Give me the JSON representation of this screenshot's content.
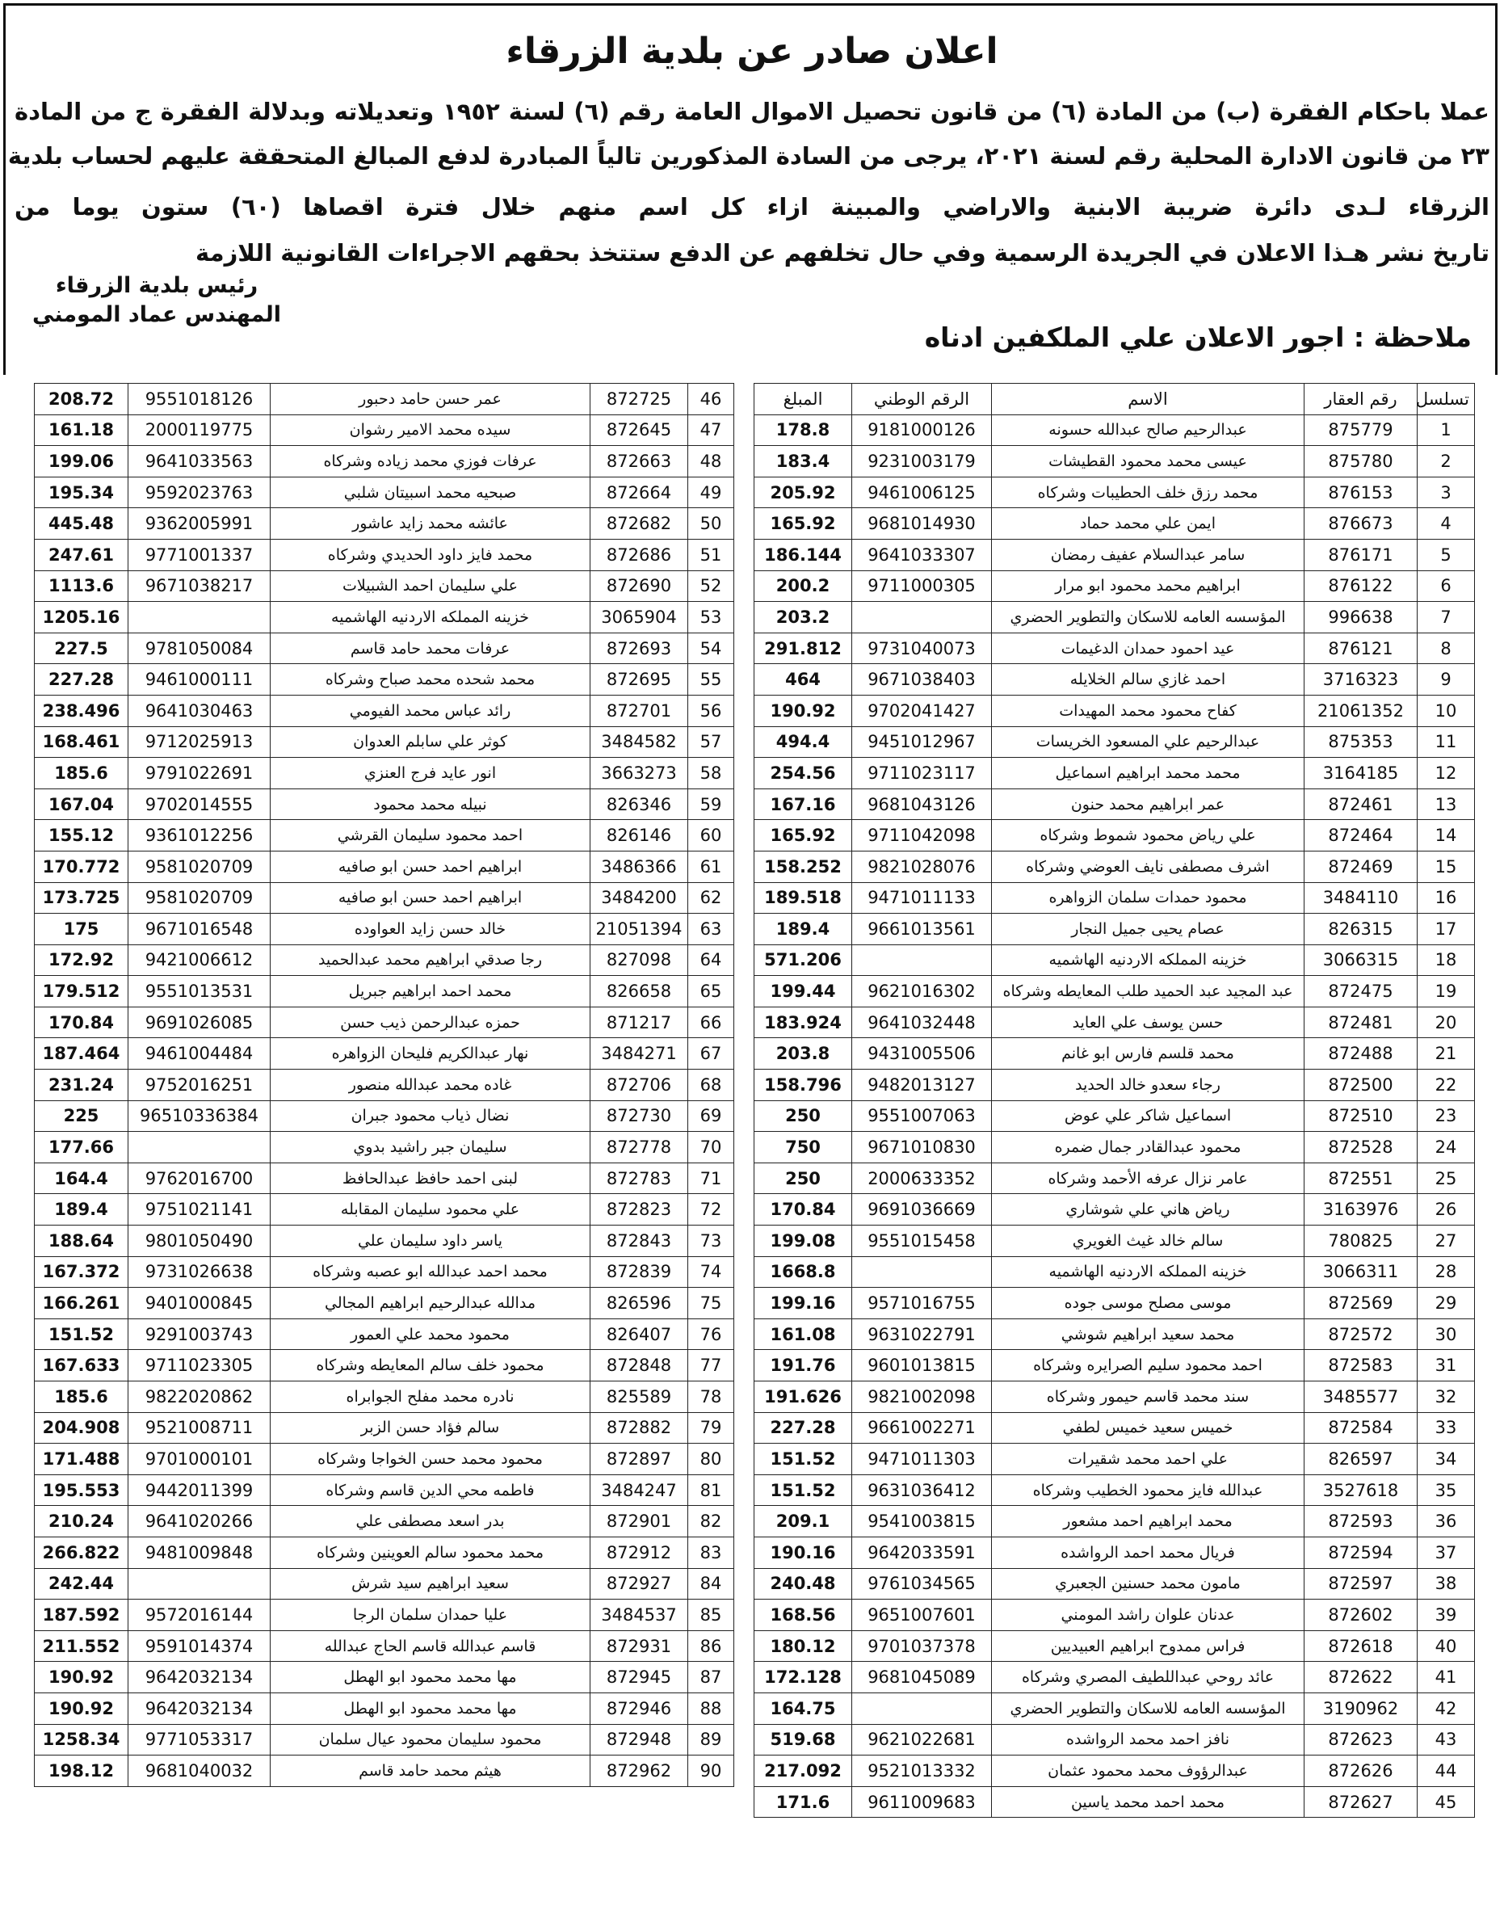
{
  "header": {
    "title": "اعلان صادر عن بلدية الزرقاء",
    "paragraph": [
      "عملا باحكام الفقرة (ب) من المادة (٦) من قانون تحصيل الاموال العامة رقم (٦) لسنة ١٩٥٢ وتعديلاته وبدلالة الفقرة ج من المادة",
      "٢٣ من قانون الادارة المحلية رقم لسنة ٢٠٢١، يرجى من السادة المذكورين تالياً المبادرة لدفع المبالغ المتحققة عليهم لحساب بلدية",
      "الزرقاء لـدى دائرة ضريبة الابنية والاراضي والمبينة ازاء كل اسم منهم خلال فترة اقصاها (٦٠) ستون يوما من",
      "تاريخ نشر هـذا الاعلان في الجريدة الرسمية وفي حال تخلفهم عن الدفع ستتخذ بحقهم الاجراءات القانونية اللازمة"
    ],
    "signature": [
      "رئيس بلدية الزرقاء",
      "المهندس عماد المومني"
    ],
    "note": "ملاحظة : اجور الاعلان علي الملكفين ادناه"
  },
  "tables": [
    {
      "columns": [
        "تسلسل",
        "رقم العقار",
        "الاسم",
        "الرقم الوطني",
        "المبلغ"
      ],
      "rows": [
        [
          "1",
          "875779",
          "عبدالرحيم صالح عبدالله حسونه",
          "9181000126",
          "178.8"
        ],
        [
          "2",
          "875780",
          "عيسى محمد محمود القطيشات",
          "9231003179",
          "183.4"
        ],
        [
          "3",
          "876153",
          "محمد رزق خلف الحطيبات وشركاه",
          "9461006125",
          "205.92"
        ],
        [
          "4",
          "876673",
          "ايمن علي محمد حماد",
          "9681014930",
          "165.92"
        ],
        [
          "5",
          "876171",
          "سامر عبدالسلام عفيف رمضان",
          "9641033307",
          "186.144"
        ],
        [
          "6",
          "876122",
          "ابراهيم محمد محمود ابو مرار",
          "9711000305",
          "200.2"
        ],
        [
          "7",
          "996638",
          "المؤسسه العامه للاسكان والتطوير الحضري",
          null,
          "203.2"
        ],
        [
          "8",
          "876121",
          "عيد احمود حمدان الدغيمات",
          "9731040073",
          "291.812"
        ],
        [
          "9",
          "3716323",
          "احمد غازي سالم الخلايله",
          "9671038403",
          "464"
        ],
        [
          "10",
          "21061352",
          "كفاح محمود محمد المهيدات",
          "9702041427",
          "190.92"
        ],
        [
          "11",
          "875353",
          "عبدالرحيم علي المسعود الخريسات",
          "9451012967",
          "494.4"
        ],
        [
          "12",
          "3164185",
          "محمد محمد ابراهيم اسماعيل",
          "9711023117",
          "254.56"
        ],
        [
          "13",
          "872461",
          "عمر ابراهيم محمد حنون",
          "9681043126",
          "167.16"
        ],
        [
          "14",
          "872464",
          "علي رياض محمود شموط وشركاه",
          "9711042098",
          "165.92"
        ],
        [
          "15",
          "872469",
          "اشرف مصطفى نايف العوضي وشركاه",
          "9821028076",
          "158.252"
        ],
        [
          "16",
          "3484110",
          "محمود حمدات سلمان الزواهره",
          "9471011133",
          "189.518"
        ],
        [
          "17",
          "826315",
          "عصام يحيى جميل النجار",
          "9661013561",
          "189.4"
        ],
        [
          "18",
          "3066315",
          "خزينه المملكه الاردنيه الهاشميه",
          null,
          "571.206"
        ],
        [
          "19",
          "872475",
          "عبد المجيد عبد الحميد طلب المعايطه وشركاه",
          "9621016302",
          "199.44"
        ],
        [
          "20",
          "872481",
          "حسن يوسف علي العايد",
          "9641032448",
          "183.924"
        ],
        [
          "21",
          "872488",
          "محمد قلسم فارس ابو غانم",
          "9431005506",
          "203.8"
        ],
        [
          "22",
          "872500",
          "رجاء سعدو خالد الحديد",
          "9482013127",
          "158.796"
        ],
        [
          "23",
          "872510",
          "اسماعيل شاكر علي عوض",
          "9551007063",
          "250"
        ],
        [
          "24",
          "872528",
          "محمود عبدالقادر جمال ضمره",
          "9671010830",
          "750"
        ],
        [
          "25",
          "872551",
          "عامر نزال عرفه الأحمد وشركاه",
          "2000633352",
          "250"
        ],
        [
          "26",
          "3163976",
          "رياض هاني علي شوشاري",
          "9691036669",
          "170.84"
        ],
        [
          "27",
          "780825",
          "سالم خالد غيث الغويري",
          "9551015458",
          "199.08"
        ],
        [
          "28",
          "3066311",
          "خزينه المملكه الاردنيه الهاشميه",
          null,
          "1668.8"
        ],
        [
          "29",
          "872569",
          "موسى مصلح موسى جوده",
          "9571016755",
          "199.16"
        ],
        [
          "30",
          "872572",
          "محمد سعيد ابراهيم شوشي",
          "9631022791",
          "161.08"
        ],
        [
          "31",
          "872583",
          "احمد محمود سليم الصرايره وشركاه",
          "9601013815",
          "191.76"
        ],
        [
          "32",
          "3485577",
          "سند محمد قاسم حيمور وشركاه",
          "9821002098",
          "191.626"
        ],
        [
          "33",
          "872584",
          "خميس سعيد خميس لطفي",
          "9661002271",
          "227.28"
        ],
        [
          "34",
          "826597",
          "علي احمد محمد شقيرات",
          "9471011303",
          "151.52"
        ],
        [
          "35",
          "3527618",
          "عبدالله فايز محمود الخطيب وشركاه",
          "9631036412",
          "151.52"
        ],
        [
          "36",
          "872593",
          "محمد ابراهيم احمد مشعور",
          "9541003815",
          "209.1"
        ],
        [
          "37",
          "872594",
          "فريال محمد احمد الرواشده",
          "9642033591",
          "190.16"
        ],
        [
          "38",
          "872597",
          "مامون محمد حسنين الجعبري",
          "9761034565",
          "240.48"
        ],
        [
          "39",
          "872602",
          "عدنان علوان راشد المومني",
          "9651007601",
          "168.56"
        ],
        [
          "40",
          "872618",
          "فراس ممدوح ابراهيم العبيديين",
          "9701037378",
          "180.12"
        ],
        [
          "41",
          "872622",
          "عائد روحي عبداللطيف المصري وشركاه",
          "9681045089",
          "172.128"
        ],
        [
          "42",
          "3190962",
          "المؤسسه العامه للاسكان والتطوير الحضري",
          null,
          "164.75"
        ],
        [
          "43",
          "872623",
          "نافز احمد محمد الرواشده",
          "9621022681",
          "519.68"
        ],
        [
          "44",
          "872626",
          "عبدالرؤوف محمد محمود عثمان",
          "9521013332",
          "217.092"
        ],
        [
          "45",
          "872627",
          "محمد احمد محمد ياسين",
          "9611009683",
          "171.6"
        ]
      ]
    },
    {
      "rows": [
        [
          "46",
          "872725",
          "عمر حسن حامد دحبور",
          "9551018126",
          "208.72"
        ],
        [
          "47",
          "872645",
          "سيده محمد الامير رشوان",
          "2000119775",
          "161.18"
        ],
        [
          "48",
          "872663",
          "عرفات فوزي محمد زياده وشركاه",
          "9641033563",
          "199.06"
        ],
        [
          "49",
          "872664",
          "صبحيه محمد اسبيتان شلبي",
          "9592023763",
          "195.34"
        ],
        [
          "50",
          "872682",
          "عائشه محمد زايد عاشور",
          "9362005991",
          "445.48"
        ],
        [
          "51",
          "872686",
          "محمد فايز داود الحديدي وشركاه",
          "9771001337",
          "247.61"
        ],
        [
          "52",
          "872690",
          "علي سليمان احمد الشبيلات",
          "9671038217",
          "1113.6"
        ],
        [
          "53",
          "3065904",
          "خزينه المملكه الاردنيه الهاشميه",
          null,
          "1205.16"
        ],
        [
          "54",
          "872693",
          "عرفات محمد حامد قاسم",
          "9781050084",
          "227.5"
        ],
        [
          "55",
          "872695",
          "محمد شحده محمد صباح وشركاه",
          "9461000111",
          "227.28"
        ],
        [
          "56",
          "872701",
          "رائد عباس محمد الفيومي",
          "9641030463",
          "238.496"
        ],
        [
          "57",
          "3484582",
          "كوثر علي سابلم العدوان",
          "9712025913",
          "168.461"
        ],
        [
          "58",
          "3663273",
          "انور عايد فرج العنزي",
          "9791022691",
          "185.6"
        ],
        [
          "59",
          "826346",
          "نبيله محمد محمود",
          "9702014555",
          "167.04"
        ],
        [
          "60",
          "826146",
          "احمد محمود سليمان القرشي",
          "9361012256",
          "155.12"
        ],
        [
          "61",
          "3486366",
          "ابراهيم احمد حسن ابو صافيه",
          "9581020709",
          "170.772"
        ],
        [
          "62",
          "3484200",
          "ابراهيم احمد حسن ابو صافيه",
          "9581020709",
          "173.725"
        ],
        [
          "63",
          "21051394",
          "خالد حسن زايد العواوده",
          "9671016548",
          "175"
        ],
        [
          "64",
          "827098",
          "رجا صدقي ابراهيم محمد عبدالحميد",
          "9421006612",
          "172.92"
        ],
        [
          "65",
          "826658",
          "محمد احمد ابراهيم جبريل",
          "9551013531",
          "179.512"
        ],
        [
          "66",
          "871217",
          "حمزه عبدالرحمن ذيب حسن",
          "9691026085",
          "170.84"
        ],
        [
          "67",
          "3484271",
          "نهار عبدالكريم فليحان الزواهره",
          "9461004484",
          "187.464"
        ],
        [
          "68",
          "872706",
          "غاده محمد عبدالله منصور",
          "9752016251",
          "231.24"
        ],
        [
          "69",
          "872730",
          "نضال ذياب محمود جبران",
          "96510336384",
          "225"
        ],
        [
          "70",
          "872778",
          "سليمان جبر راشيد بدوي",
          null,
          "177.66"
        ],
        [
          "71",
          "872783",
          "لبنى احمد حافظ عبدالحافظ",
          "9762016700",
          "164.4"
        ],
        [
          "72",
          "872823",
          "علي محمود سليمان المقابله",
          "9751021141",
          "189.4"
        ],
        [
          "73",
          "872843",
          "ياسر داود سليمان علي",
          "9801050490",
          "188.64"
        ],
        [
          "74",
          "872839",
          "محمد احمد عبدالله ابو عصبه وشركاه",
          "9731026638",
          "167.372"
        ],
        [
          "75",
          "826596",
          "مدالله عبدالرحيم ابراهيم المجالي",
          "9401000845",
          "166.261"
        ],
        [
          "76",
          "826407",
          "محمود محمد علي العمور",
          "9291003743",
          "151.52"
        ],
        [
          "77",
          "872848",
          "محمود خلف سالم المعايطه وشركاه",
          "9711023305",
          "167.633"
        ],
        [
          "78",
          "825589",
          "نادره محمد مفلح الجوابراه",
          "9822020862",
          "185.6"
        ],
        [
          "79",
          "872882",
          "سالم فؤاد حسن الزبر",
          "9521008711",
          "204.908"
        ],
        [
          "80",
          "872897",
          "محمود محمد حسن الخواجا وشركاه",
          "9701000101",
          "171.488"
        ],
        [
          "81",
          "3484247",
          "فاطمه محي الدين قاسم وشركاه",
          "9442011399",
          "195.553"
        ],
        [
          "82",
          "872901",
          "بدر اسعد مصطفى علي",
          "9641020266",
          "210.24"
        ],
        [
          "83",
          "872912",
          "محمد محمود سالم العوينين وشركاه",
          "9481009848",
          "266.822"
        ],
        [
          "84",
          "872927",
          "سعيد ابراهيم سيد شرش",
          null,
          "242.44"
        ],
        [
          "85",
          "3484537",
          "عليا حمدان سلمان الرجا",
          "9572016144",
          "187.592"
        ],
        [
          "86",
          "872931",
          "قاسم عبدالله قاسم الحاج عبدالله",
          "9591014374",
          "211.552"
        ],
        [
          "87",
          "872945",
          "مها محمد محمود ابو الهطل",
          "9642032134",
          "190.92"
        ],
        [
          "88",
          "872946",
          "مها محمد محمود ابو الهطل",
          "9642032134",
          "190.92"
        ],
        [
          "89",
          "872948",
          "محمود سليمان محمود عيال سلمان",
          "9771053317",
          "1258.34"
        ],
        [
          "90",
          "872962",
          "هيثم محمد حامد قاسم",
          "9681040032",
          "198.12"
        ]
      ]
    }
  ]
}
